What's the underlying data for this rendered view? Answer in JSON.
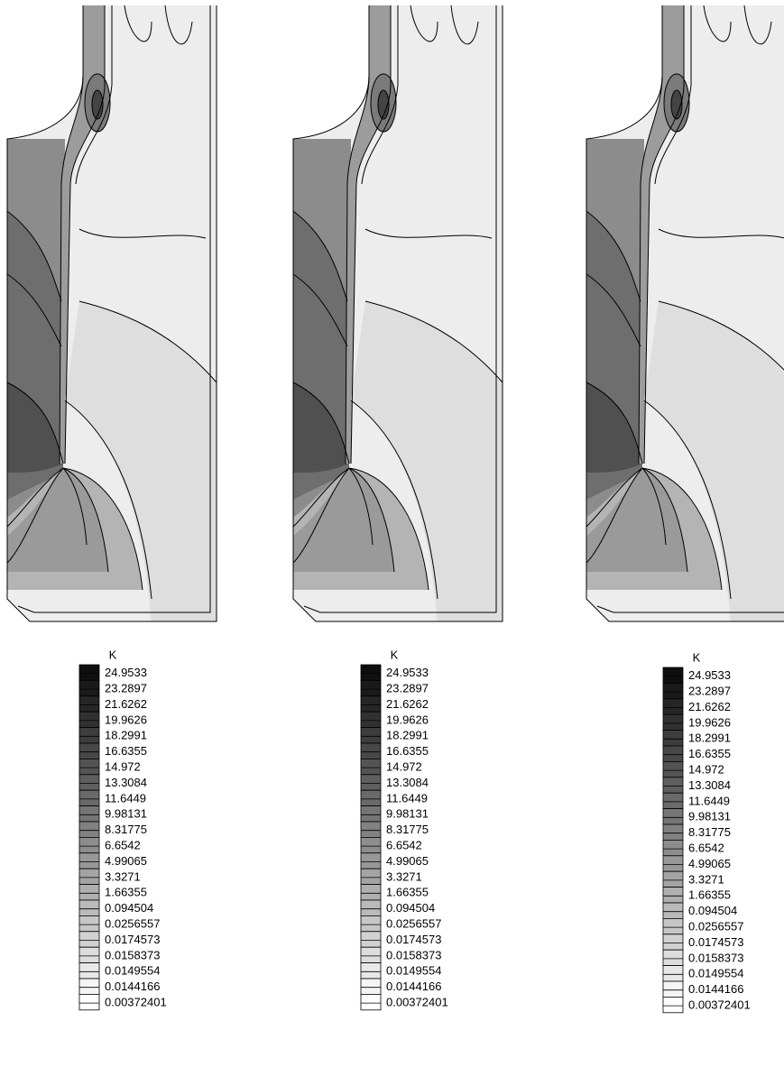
{
  "panels": [
    {
      "legend": {
        "title": "K",
        "levels": [
          24.9533,
          23.2897,
          21.6262,
          19.9626,
          18.2991,
          16.6355,
          14.972,
          13.3084,
          11.6449,
          9.98131,
          8.31775,
          6.6542,
          4.99065,
          3.3271,
          1.66355,
          0.094504,
          0.0256557,
          0.0174573,
          0.0158373,
          0.0149554,
          0.0144166,
          0.00372401
        ]
      }
    },
    {
      "legend": {
        "title": "K",
        "levels": [
          24.9533,
          23.2897,
          21.6262,
          19.9626,
          18.2991,
          16.6355,
          14.972,
          13.3084,
          11.6449,
          9.98131,
          8.31775,
          6.6542,
          4.99065,
          3.3271,
          1.66355,
          0.094504,
          0.0256557,
          0.0174573,
          0.0158373,
          0.0149554,
          0.0144166,
          0.00372401
        ]
      }
    },
    {
      "legend": {
        "title": "K",
        "levels": [
          24.9533,
          23.2897,
          21.6262,
          19.9626,
          18.2991,
          16.6355,
          14.972,
          13.3084,
          11.6449,
          9.98131,
          8.31775,
          6.6542,
          4.99065,
          3.3271,
          1.66355,
          0.094504,
          0.0256557,
          0.0174573,
          0.0158373,
          0.0149554,
          0.0144166,
          0.00372401
        ]
      }
    }
  ]
}
